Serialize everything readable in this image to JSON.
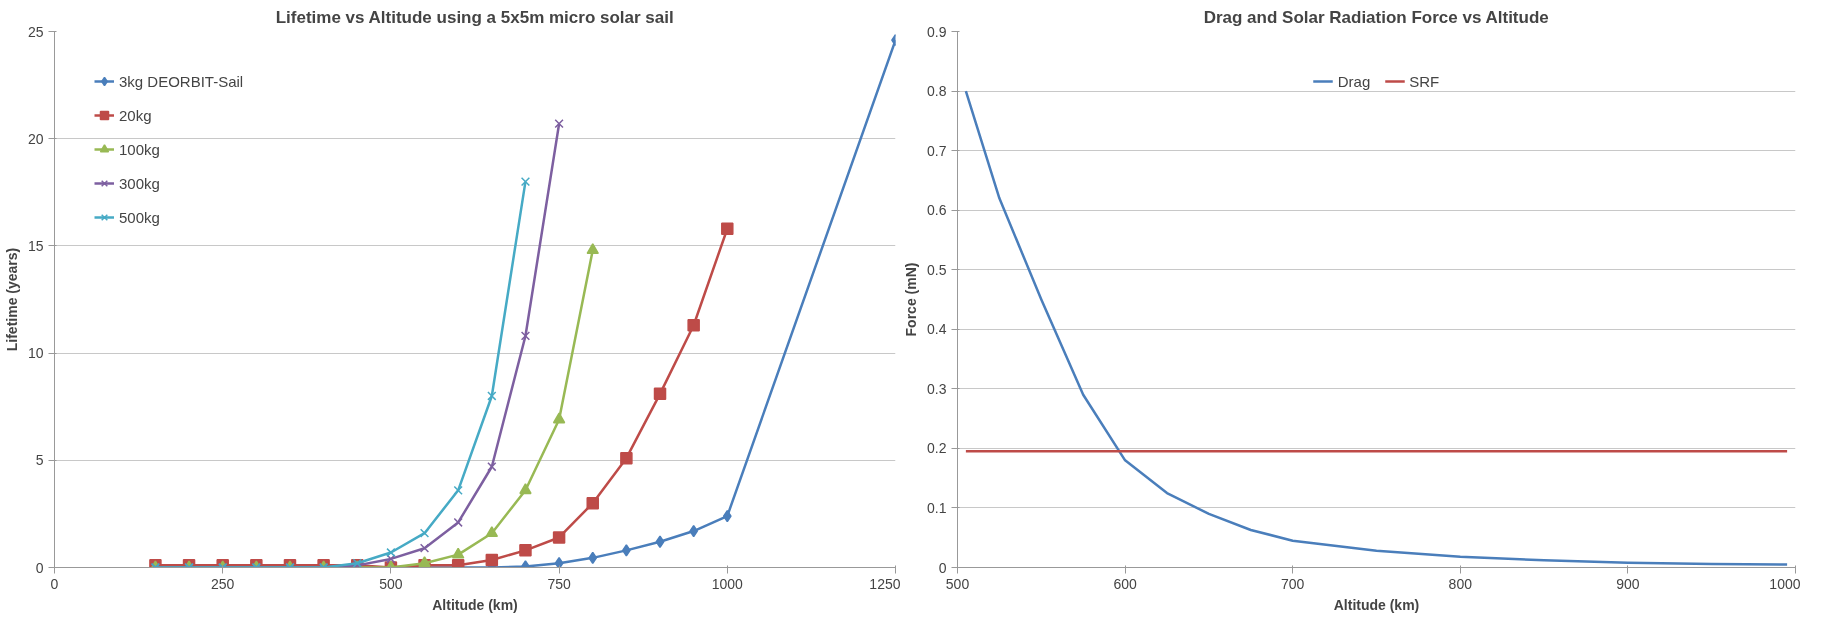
{
  "chart_data": [
    {
      "type": "line",
      "title": "Lifetime vs Altitude using a 5x5m micro solar sail",
      "xlabel": "Altitude (km)",
      "ylabel": "Lifetime (years)",
      "xlim": [
        0,
        1250
      ],
      "xticks": [
        0,
        250,
        500,
        750,
        1000,
        1250
      ],
      "ylim": [
        0,
        25
      ],
      "yticks": [
        0,
        5,
        10,
        15,
        20,
        25
      ],
      "grid": "y",
      "legend": "top left",
      "series": [
        {
          "name": "3kg DEORBIT-Sail",
          "color": "#4a7ebb",
          "marker": "diamond",
          "x": [
            150,
            200,
            250,
            300,
            350,
            400,
            450,
            500,
            550,
            600,
            650,
            700,
            750,
            800,
            850,
            900,
            950,
            1000,
            1250
          ],
          "values": [
            0,
            0,
            0,
            0,
            0,
            0,
            0,
            0,
            0,
            0,
            0,
            0.05,
            0.2,
            0.45,
            0.8,
            1.2,
            1.7,
            2.4,
            24.6
          ]
        },
        {
          "name": "20kg",
          "color": "#be4b48",
          "marker": "square",
          "x": [
            150,
            200,
            250,
            300,
            350,
            400,
            450,
            500,
            550,
            600,
            650,
            700,
            750,
            800,
            850,
            900,
            950,
            1000
          ],
          "values": [
            0.1,
            0.1,
            0.1,
            0.1,
            0.1,
            0.1,
            0.1,
            0,
            0.1,
            0.1,
            0.35,
            0.8,
            1.4,
            3.0,
            5.1,
            8.1,
            11.3,
            15.8
          ]
        },
        {
          "name": "100kg",
          "color": "#98b954",
          "marker": "triangle",
          "x": [
            150,
            200,
            250,
            300,
            350,
            400,
            450,
            500,
            550,
            600,
            650,
            700,
            750,
            800
          ],
          "values": [
            0,
            0,
            0,
            0,
            0,
            0,
            0,
            0,
            0.2,
            0.6,
            1.6,
            3.6,
            6.9,
            14.8
          ]
        },
        {
          "name": "300kg",
          "color": "#7d5fa0",
          "marker": "cross",
          "x": [
            150,
            200,
            250,
            300,
            350,
            400,
            450,
            500,
            550,
            600,
            650,
            700,
            750
          ],
          "values": [
            0,
            0,
            0,
            0,
            0,
            0,
            0.1,
            0.4,
            0.9,
            2.1,
            4.7,
            10.8,
            20.7
          ]
        },
        {
          "name": "500kg",
          "color": "#46aac5",
          "marker": "cross",
          "x": [
            150,
            200,
            250,
            300,
            350,
            400,
            450,
            500,
            550,
            600,
            650,
            700
          ],
          "values": [
            0,
            0,
            0,
            0,
            0,
            0,
            0.2,
            0.7,
            1.6,
            3.6,
            8.0,
            18.0
          ]
        }
      ]
    },
    {
      "type": "line",
      "title": "Drag and Solar Radiation Force vs Altitude",
      "xlabel": "Altitude (km)",
      "ylabel": "Force (mN)",
      "xlim": [
        500,
        1000
      ],
      "xticks": [
        500,
        600,
        700,
        800,
        900,
        1000
      ],
      "ylim": [
        0,
        0.9
      ],
      "yticks": [
        0,
        0.1,
        0.2,
        0.3,
        0.4,
        0.5,
        0.6,
        0.7,
        0.8,
        0.9
      ],
      "grid": "y",
      "legend": "top",
      "series": [
        {
          "name": "Drag",
          "color": "#4a7ebb",
          "x": [
            505,
            525,
            550,
            575,
            600,
            625,
            650,
            675,
            700,
            750,
            800,
            850,
            900,
            950,
            995
          ],
          "values": [
            0.8,
            0.62,
            0.45,
            0.29,
            0.18,
            0.125,
            0.09,
            0.063,
            0.045,
            0.028,
            0.018,
            0.012,
            0.008,
            0.006,
            0.005
          ]
        },
        {
          "name": "SRF",
          "color": "#be4b48",
          "x": [
            505,
            995
          ],
          "values": [
            0.195,
            0.195
          ]
        }
      ]
    }
  ]
}
